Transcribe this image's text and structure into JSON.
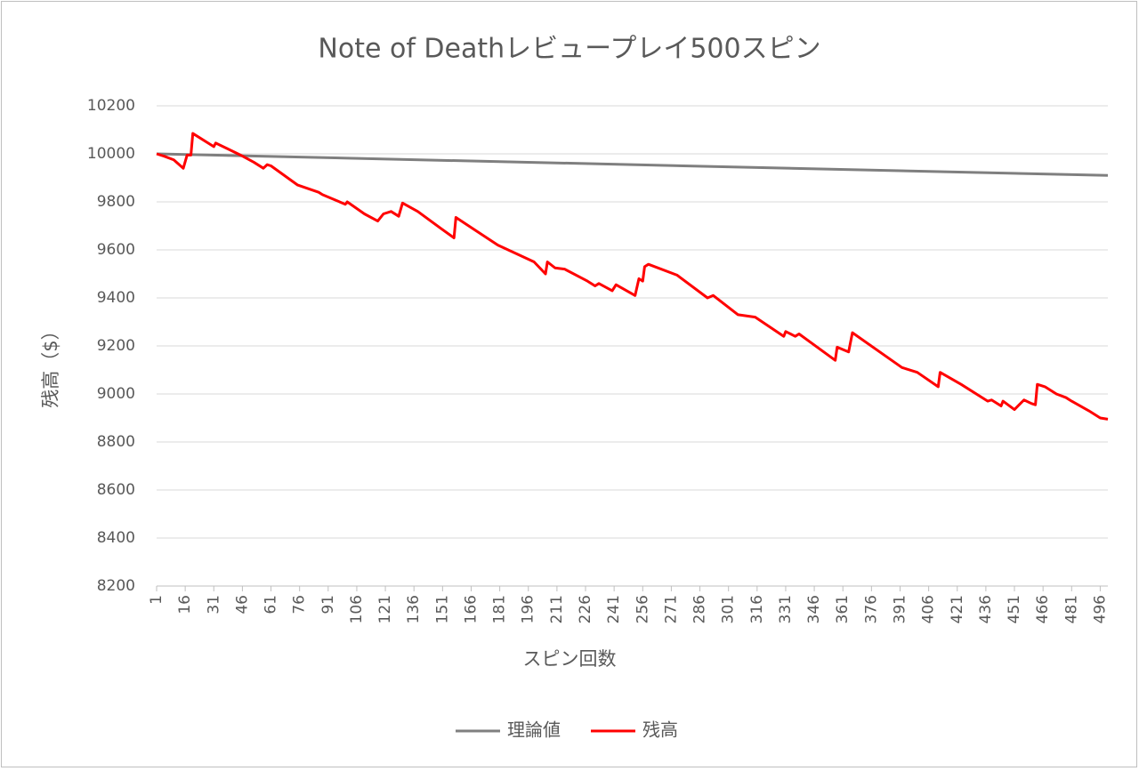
{
  "chart_data": {
    "type": "line",
    "title": "Note of Deathレビュープレイ500スピン",
    "x_label": "スピン回数",
    "y_label": "残高（$）",
    "xlim": [
      1,
      500
    ],
    "xticks": [
      1,
      16,
      31,
      46,
      61,
      76,
      91,
      106,
      121,
      136,
      151,
      166,
      181,
      196,
      211,
      226,
      241,
      256,
      271,
      286,
      301,
      316,
      331,
      346,
      361,
      376,
      391,
      406,
      421,
      436,
      451,
      466,
      481,
      496
    ],
    "ylim": [
      8200,
      10200
    ],
    "yticks": [
      8200,
      8400,
      8600,
      8800,
      9000,
      9200,
      9400,
      9600,
      9800,
      10000,
      10200
    ],
    "grid": true,
    "legend": "bottom",
    "series": [
      {
        "name": "理論値",
        "color": "#7f7f7f",
        "x": [
          1,
          500
        ],
        "values": [
          10000,
          9910
        ]
      },
      {
        "name": "残高",
        "color": "#ff0000",
        "x": [
          1,
          5,
          10,
          15,
          17,
          19,
          20,
          31,
          32,
          45,
          52,
          57,
          59,
          61,
          75,
          86,
          88,
          100,
          101,
          110,
          117,
          120,
          124,
          128,
          130,
          138,
          150,
          157,
          158,
          180,
          199,
          205,
          206,
          210,
          215,
          227,
          231,
          233,
          240,
          242,
          252,
          254,
          256,
          257,
          259,
          274,
          290,
          293,
          306,
          315,
          330,
          331,
          336,
          338,
          357,
          358,
          364,
          366,
          392,
          400,
          411,
          412,
          423,
          437,
          439,
          444,
          445,
          451,
          456,
          460,
          462,
          463,
          467,
          473,
          478,
          481,
          490,
          496,
          500
        ],
        "values": [
          10000,
          9990,
          9975,
          9940,
          9995,
          9995,
          10085,
          10030,
          10045,
          9995,
          9965,
          9940,
          9955,
          9950,
          9870,
          9840,
          9830,
          9790,
          9800,
          9750,
          9720,
          9750,
          9760,
          9740,
          9795,
          9760,
          9690,
          9650,
          9735,
          9620,
          9550,
          9500,
          9550,
          9525,
          9520,
          9470,
          9450,
          9460,
          9430,
          9455,
          9410,
          9480,
          9470,
          9530,
          9540,
          9495,
          9400,
          9410,
          9330,
          9320,
          9240,
          9260,
          9240,
          9250,
          9140,
          9195,
          9175,
          9255,
          9110,
          9090,
          9030,
          9090,
          9040,
          8970,
          8975,
          8950,
          8970,
          8935,
          8975,
          8960,
          8955,
          9040,
          9030,
          9000,
          8985,
          8970,
          8930,
          8900,
          8895
        ]
      }
    ]
  }
}
